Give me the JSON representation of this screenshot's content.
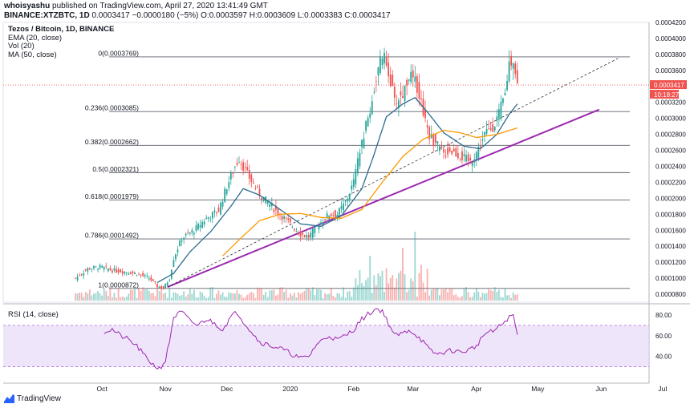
{
  "header": {
    "author": "whoisyashu",
    "published": "published on TradingView.com, April 27, 2020 13:41:49 GMT",
    "symbol": "BINANCE:XTZBTC, 1D",
    "last": "0.0003417",
    "change": "−0.0000180 (−5%)",
    "open_label": "O:",
    "open": "0.0003597",
    "high_label": "H:",
    "high": "0.0003609",
    "low_label": "L:",
    "low": "0.0003383",
    "close_label": "C:",
    "close": "0.0003417"
  },
  "indicators": {
    "title": "Tezos / Bitcoin, 1D, BINANCE",
    "ema": "EMA (20, close)",
    "vol": "Vol (20)",
    "ma": "MA (50, close)",
    "rsi": "RSI (14, close)"
  },
  "branding": "TradingView",
  "colors": {
    "up": "#26a69a",
    "down": "#ef5350",
    "ema": "#2c6b8f",
    "ma": "#ff9800",
    "trendline": "#9c27b0",
    "rsi": "#9c27b0",
    "rsi_band": "#e5d3f6",
    "fib": "#787b86",
    "last_price": "#ef5350"
  },
  "chart_data": {
    "type": "candlestick",
    "price_axis": {
      "range": [
        7e-05,
        0.00042
      ],
      "ticks": [
        "0.0004200",
        "0.0004000",
        "0.0003800",
        "0.0003600",
        "0.0003200",
        "0.0003000",
        "0.0002800",
        "0.0002600",
        "0.0002400",
        "0.0002200",
        "0.0002000",
        "0.0001800",
        "0.0001600",
        "0.0001400",
        "0.0001200",
        "0.0001000",
        "0.0000800"
      ],
      "tick_values": [
        0.00042,
        0.0004,
        0.00038,
        0.00036,
        0.00032,
        0.0003,
        0.00028,
        0.00026,
        0.00024,
        0.00022,
        0.0002,
        0.00018,
        0.00016,
        0.00014,
        0.00012,
        0.0001,
        8e-05
      ],
      "last_price_label": "0.0003417",
      "countdown_label": "10:18:27"
    },
    "time_axis": {
      "labels": [
        "Oct",
        "Nov",
        "Dec",
        "2020",
        "Feb",
        "Mar",
        "Apr",
        "May",
        "Jun",
        "Jul"
      ],
      "day_index": [
        13,
        44,
        74,
        105,
        136,
        165,
        196,
        226,
        257,
        287
      ]
    },
    "fib_levels": [
      {
        "label": "0(0.0003769)",
        "value": 0.0003769
      },
      {
        "label": "0.236(0.0003085)",
        "value": 0.0003085
      },
      {
        "label": "0.382(0.0002662)",
        "value": 0.0002662
      },
      {
        "label": "0.5(0.0002321)",
        "value": 0.0002321
      },
      {
        "label": "0.618(0.0001979)",
        "value": 0.0001979
      },
      {
        "label": "0.786(0.0001492)",
        "value": 0.0001492
      },
      {
        "label": "1(0.0000872)",
        "value": 8.72e-05
      }
    ],
    "anchors": [
      [
        0,
        0.0001
      ],
      [
        6,
        0.000112
      ],
      [
        12,
        0.000114
      ],
      [
        18,
        0.00011
      ],
      [
        24,
        0.000108
      ],
      [
        30,
        0.000106
      ],
      [
        36,
        0.0001
      ],
      [
        40,
        9e-05
      ],
      [
        43,
        8.72e-05
      ],
      [
        46,
        0.0001
      ],
      [
        48,
        0.000125
      ],
      [
        52,
        0.00015
      ],
      [
        58,
        0.00016
      ],
      [
        64,
        0.000175
      ],
      [
        70,
        0.000185
      ],
      [
        74,
        0.000215
      ],
      [
        78,
        0.00024
      ],
      [
        80,
        0.00025
      ],
      [
        84,
        0.00023
      ],
      [
        90,
        0.000205
      ],
      [
        96,
        0.00019
      ],
      [
        100,
        0.00018
      ],
      [
        104,
        0.00017
      ],
      [
        110,
        0.000155
      ],
      [
        114,
        0.000152
      ],
      [
        118,
        0.000165
      ],
      [
        124,
        0.00018
      ],
      [
        128,
        0.00018
      ],
      [
        132,
        0.000195
      ],
      [
        136,
        0.00022
      ],
      [
        140,
        0.00027
      ],
      [
        144,
        0.00031
      ],
      [
        147,
        0.00035
      ],
      [
        150,
        0.00038
      ],
      [
        153,
        0.00036
      ],
      [
        156,
        0.00032
      ],
      [
        160,
        0.00033
      ],
      [
        163,
        0.000355
      ],
      [
        167,
        0.00034
      ],
      [
        170,
        0.00031
      ],
      [
        173,
        0.00028
      ],
      [
        177,
        0.000265
      ],
      [
        180,
        0.000255
      ],
      [
        183,
        0.00026
      ],
      [
        187,
        0.000255
      ],
      [
        190,
        0.00025
      ],
      [
        193,
        0.000245
      ],
      [
        197,
        0.000262
      ],
      [
        200,
        0.00028
      ],
      [
        204,
        0.00029
      ],
      [
        207,
        0.000305
      ],
      [
        210,
        0.00033
      ],
      [
        212,
        0.00037
      ],
      [
        214,
        0.000375
      ],
      [
        215,
        0.000358
      ],
      [
        216,
        0.0003417
      ]
    ],
    "ema_anchors": [
      [
        40,
        9.45e-05
      ],
      [
        48,
        0.000106
      ],
      [
        56,
        0.000133
      ],
      [
        66,
        0.000158
      ],
      [
        76,
        0.00019
      ],
      [
        82,
        0.000212
      ],
      [
        90,
        0.000204
      ],
      [
        100,
        0.000186
      ],
      [
        110,
        0.000168
      ],
      [
        120,
        0.000165
      ],
      [
        130,
        0.000178
      ],
      [
        140,
        0.000212
      ],
      [
        146,
        0.000255
      ],
      [
        152,
        0.000302
      ],
      [
        160,
        0.000318
      ],
      [
        166,
        0.000326
      ],
      [
        172,
        0.000308
      ],
      [
        180,
        0.000282
      ],
      [
        190,
        0.000265
      ],
      [
        198,
        0.000262
      ],
      [
        206,
        0.00028
      ],
      [
        212,
        0.000305
      ],
      [
        216,
        0.000318
      ]
    ],
    "ma_anchors": [
      [
        72,
        0.000128
      ],
      [
        80,
        0.000148
      ],
      [
        90,
        0.000172
      ],
      [
        100,
        0.00018
      ],
      [
        110,
        0.000181
      ],
      [
        120,
        0.000176
      ],
      [
        130,
        0.000175
      ],
      [
        140,
        0.000186
      ],
      [
        150,
        0.00022
      ],
      [
        160,
        0.000252
      ],
      [
        170,
        0.000274
      ],
      [
        180,
        0.000285
      ],
      [
        188,
        0.000282
      ],
      [
        196,
        0.000276
      ],
      [
        206,
        0.00028
      ],
      [
        216,
        0.000288
      ]
    ],
    "trendlines": [
      {
        "name": "support",
        "from": [
          45,
          8.9e-05
        ],
        "to": [
          256,
          0.000311
        ]
      },
      {
        "name": "dashed",
        "from": [
          45,
          8.9e-05
        ],
        "to": [
          266,
          0.000376
        ]
      }
    ],
    "rsi": {
      "range": [
        25,
        90
      ],
      "ticks": [
        "80.00",
        "60.00",
        "40.00"
      ],
      "tick_values": [
        80,
        60,
        40
      ],
      "band": [
        70,
        30
      ],
      "anchors": [
        [
          14,
          64
        ],
        [
          18,
          66
        ],
        [
          22,
          60
        ],
        [
          26,
          56
        ],
        [
          30,
          50
        ],
        [
          34,
          40
        ],
        [
          38,
          32
        ],
        [
          41,
          28
        ],
        [
          44,
          36
        ],
        [
          46,
          55
        ],
        [
          48,
          78
        ],
        [
          52,
          83
        ],
        [
          56,
          74
        ],
        [
          60,
          70
        ],
        [
          64,
          76
        ],
        [
          68,
          72
        ],
        [
          72,
          66
        ],
        [
          76,
          78
        ],
        [
          79,
          83
        ],
        [
          82,
          74
        ],
        [
          86,
          64
        ],
        [
          90,
          54
        ],
        [
          96,
          50
        ],
        [
          100,
          48
        ],
        [
          106,
          42
        ],
        [
          110,
          38
        ],
        [
          114,
          40
        ],
        [
          118,
          52
        ],
        [
          124,
          60
        ],
        [
          128,
          56
        ],
        [
          132,
          60
        ],
        [
          136,
          66
        ],
        [
          140,
          76
        ],
        [
          144,
          82
        ],
        [
          147,
          86
        ],
        [
          150,
          84
        ],
        [
          153,
          72
        ],
        [
          156,
          60
        ],
        [
          160,
          62
        ],
        [
          163,
          66
        ],
        [
          167,
          60
        ],
        [
          170,
          54
        ],
        [
          173,
          46
        ],
        [
          177,
          42
        ],
        [
          180,
          44
        ],
        [
          184,
          46
        ],
        [
          188,
          44
        ],
        [
          192,
          46
        ],
        [
          196,
          50
        ],
        [
          200,
          62
        ],
        [
          204,
          64
        ],
        [
          208,
          70
        ],
        [
          211,
          76
        ],
        [
          214,
          80
        ],
        [
          216,
          60
        ]
      ]
    },
    "volume": {
      "max_ratio_note": "volume bars scaled relative to the largest bar"
    }
  }
}
